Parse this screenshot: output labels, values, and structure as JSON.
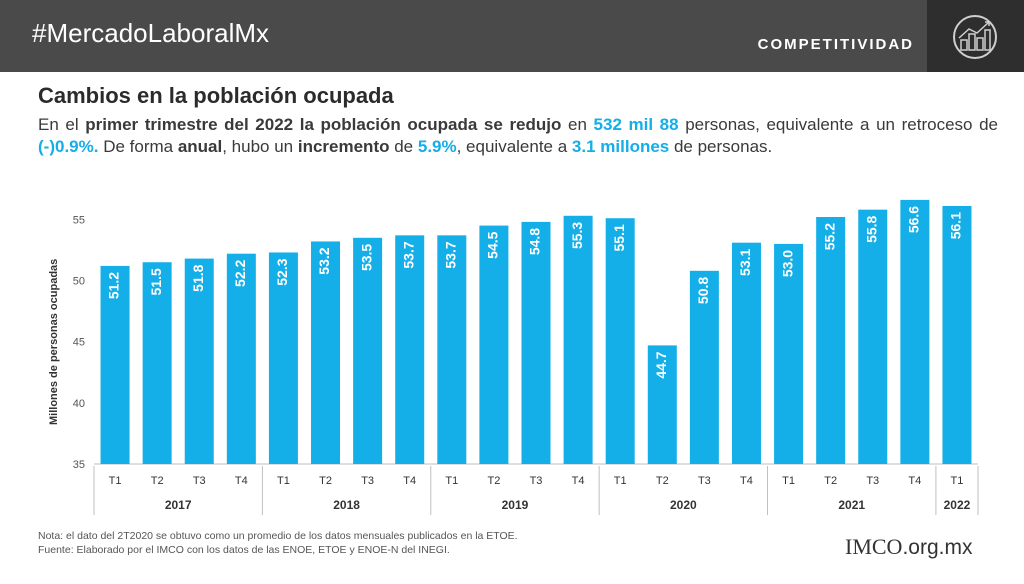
{
  "header": {
    "hashtag": "#MercadoLaboralMx",
    "section": "COMPETITIVIDAD",
    "logo_icon": "city-growth-icon"
  },
  "title": "Cambios en la población ocupada",
  "summary": {
    "p1": "En el ",
    "p2": "primer trimestre del 2022 la población ocupada se redujo",
    "p3": " en ",
    "p4": "532 mil 88",
    "p5": " personas, equivalente a un retroceso de ",
    "p6": "(-)0.9%.",
    "p7": " De forma ",
    "p8": "anual",
    "p9": ", hubo un ",
    "p10": "incremento",
    "p11": " de ",
    "p12": "5.9%",
    "p13": ", equivalente a ",
    "p14": "3.1 millones",
    "p15": " de personas."
  },
  "chart_data": {
    "type": "bar",
    "ylabel": "Millones de personas ocupadas",
    "ylim": [
      35,
      57
    ],
    "yticks": [
      35,
      40,
      45,
      50,
      55
    ],
    "bar_color": "#14aee8",
    "categories": [
      "T1",
      "T2",
      "T3",
      "T4",
      "T1",
      "T2",
      "T3",
      "T4",
      "T1",
      "T2",
      "T3",
      "T4",
      "T1",
      "T2",
      "T3",
      "T4",
      "T1",
      "T2",
      "T3",
      "T4",
      "T1"
    ],
    "values": [
      51.2,
      51.5,
      51.8,
      52.2,
      52.3,
      53.2,
      53.5,
      53.7,
      53.7,
      54.5,
      54.8,
      55.3,
      55.1,
      44.7,
      50.8,
      53.1,
      53.0,
      55.2,
      55.8,
      56.6,
      56.1
    ],
    "value_labels": [
      "51.2",
      "51.5",
      "51.8",
      "52.2",
      "52.3",
      "53.2",
      "53.5",
      "53.7",
      "53.7",
      "54.5",
      "54.8",
      "55.3",
      "55.1",
      "44.7",
      "50.8",
      "53.1",
      "53.0",
      "55.2",
      "55.8",
      "56.6",
      "56.1"
    ],
    "years": [
      {
        "label": "2017",
        "count": 4
      },
      {
        "label": "2018",
        "count": 4
      },
      {
        "label": "2019",
        "count": 4
      },
      {
        "label": "2020",
        "count": 4
      },
      {
        "label": "2021",
        "count": 4
      },
      {
        "label": "2022",
        "count": 1
      }
    ],
    "grid": false
  },
  "footer": {
    "note": "Nota: el dato del 2T2020 se obtuvo como un promedio de los datos mensuales publicados en la ETOE.",
    "source": "Fuente: Elaborado por el IMCO con los datos de las ENOE, ETOE y ENOE-N del INEGI.",
    "brand": "IMCO",
    "domain": ".org.mx"
  }
}
